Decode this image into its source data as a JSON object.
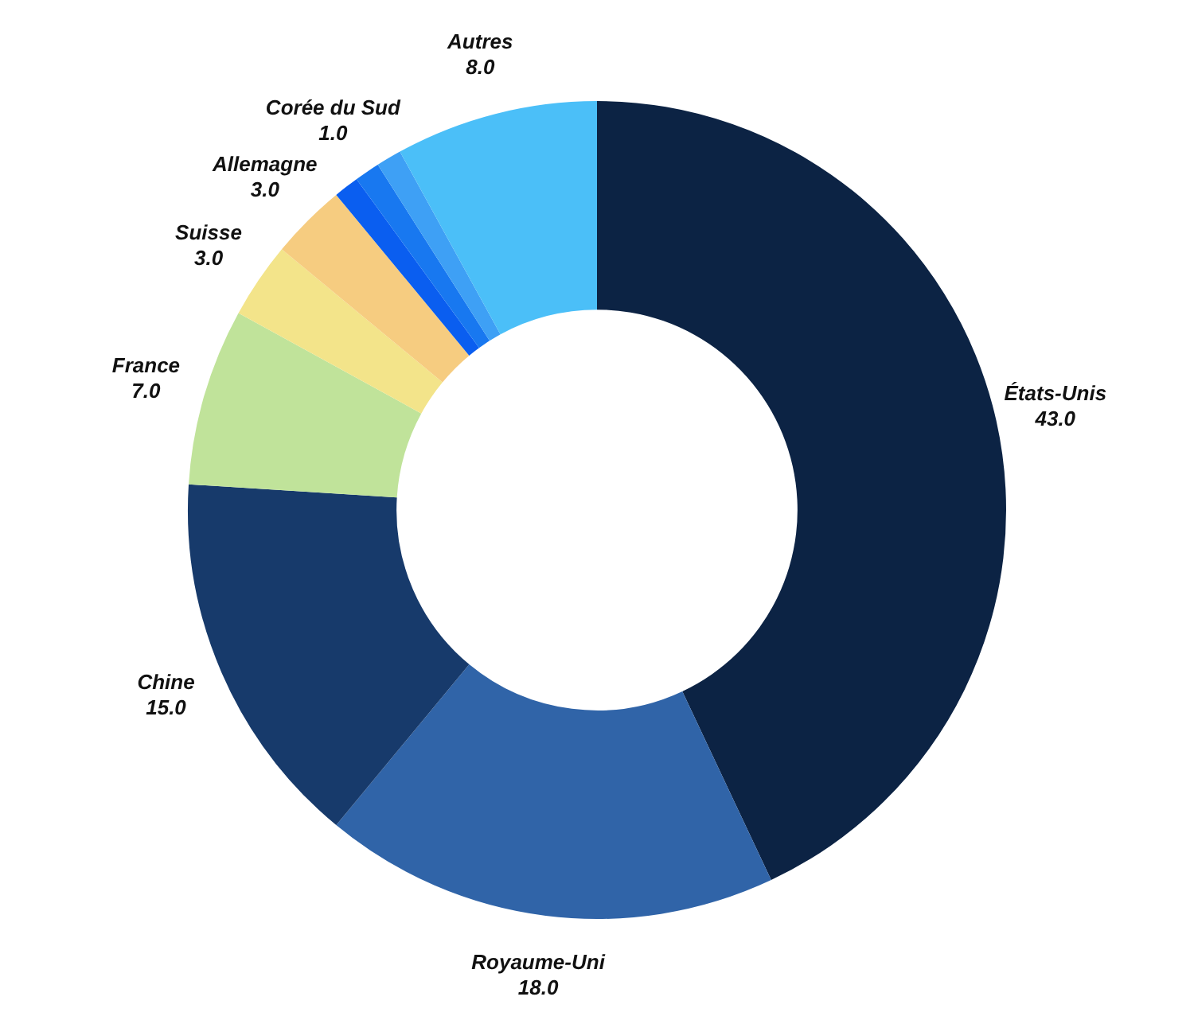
{
  "chart_data": {
    "type": "donut",
    "categories": [
      "États-Unis",
      "Royaume-Uni",
      "Chine",
      "France",
      "Suisse",
      "Allemagne",
      null,
      "Corée du Sud",
      null,
      "Autres"
    ],
    "values": [
      43,
      18,
      15,
      7,
      3,
      3,
      1,
      1,
      1,
      8
    ],
    "value_labels": [
      "43.0",
      "18.0",
      "15.0",
      "7.0",
      "3.0",
      "3.0",
      null,
      "1.0",
      null,
      "8.0"
    ],
    "colors": [
      "#0c2344",
      "#3064a8",
      "#173a6b",
      "#c0e39a",
      "#f3e48a",
      "#f6cc80",
      "#0a5ef0",
      "#1878f0",
      "#3ea0f5",
      "#4bbff8"
    ],
    "legend": false
  }
}
